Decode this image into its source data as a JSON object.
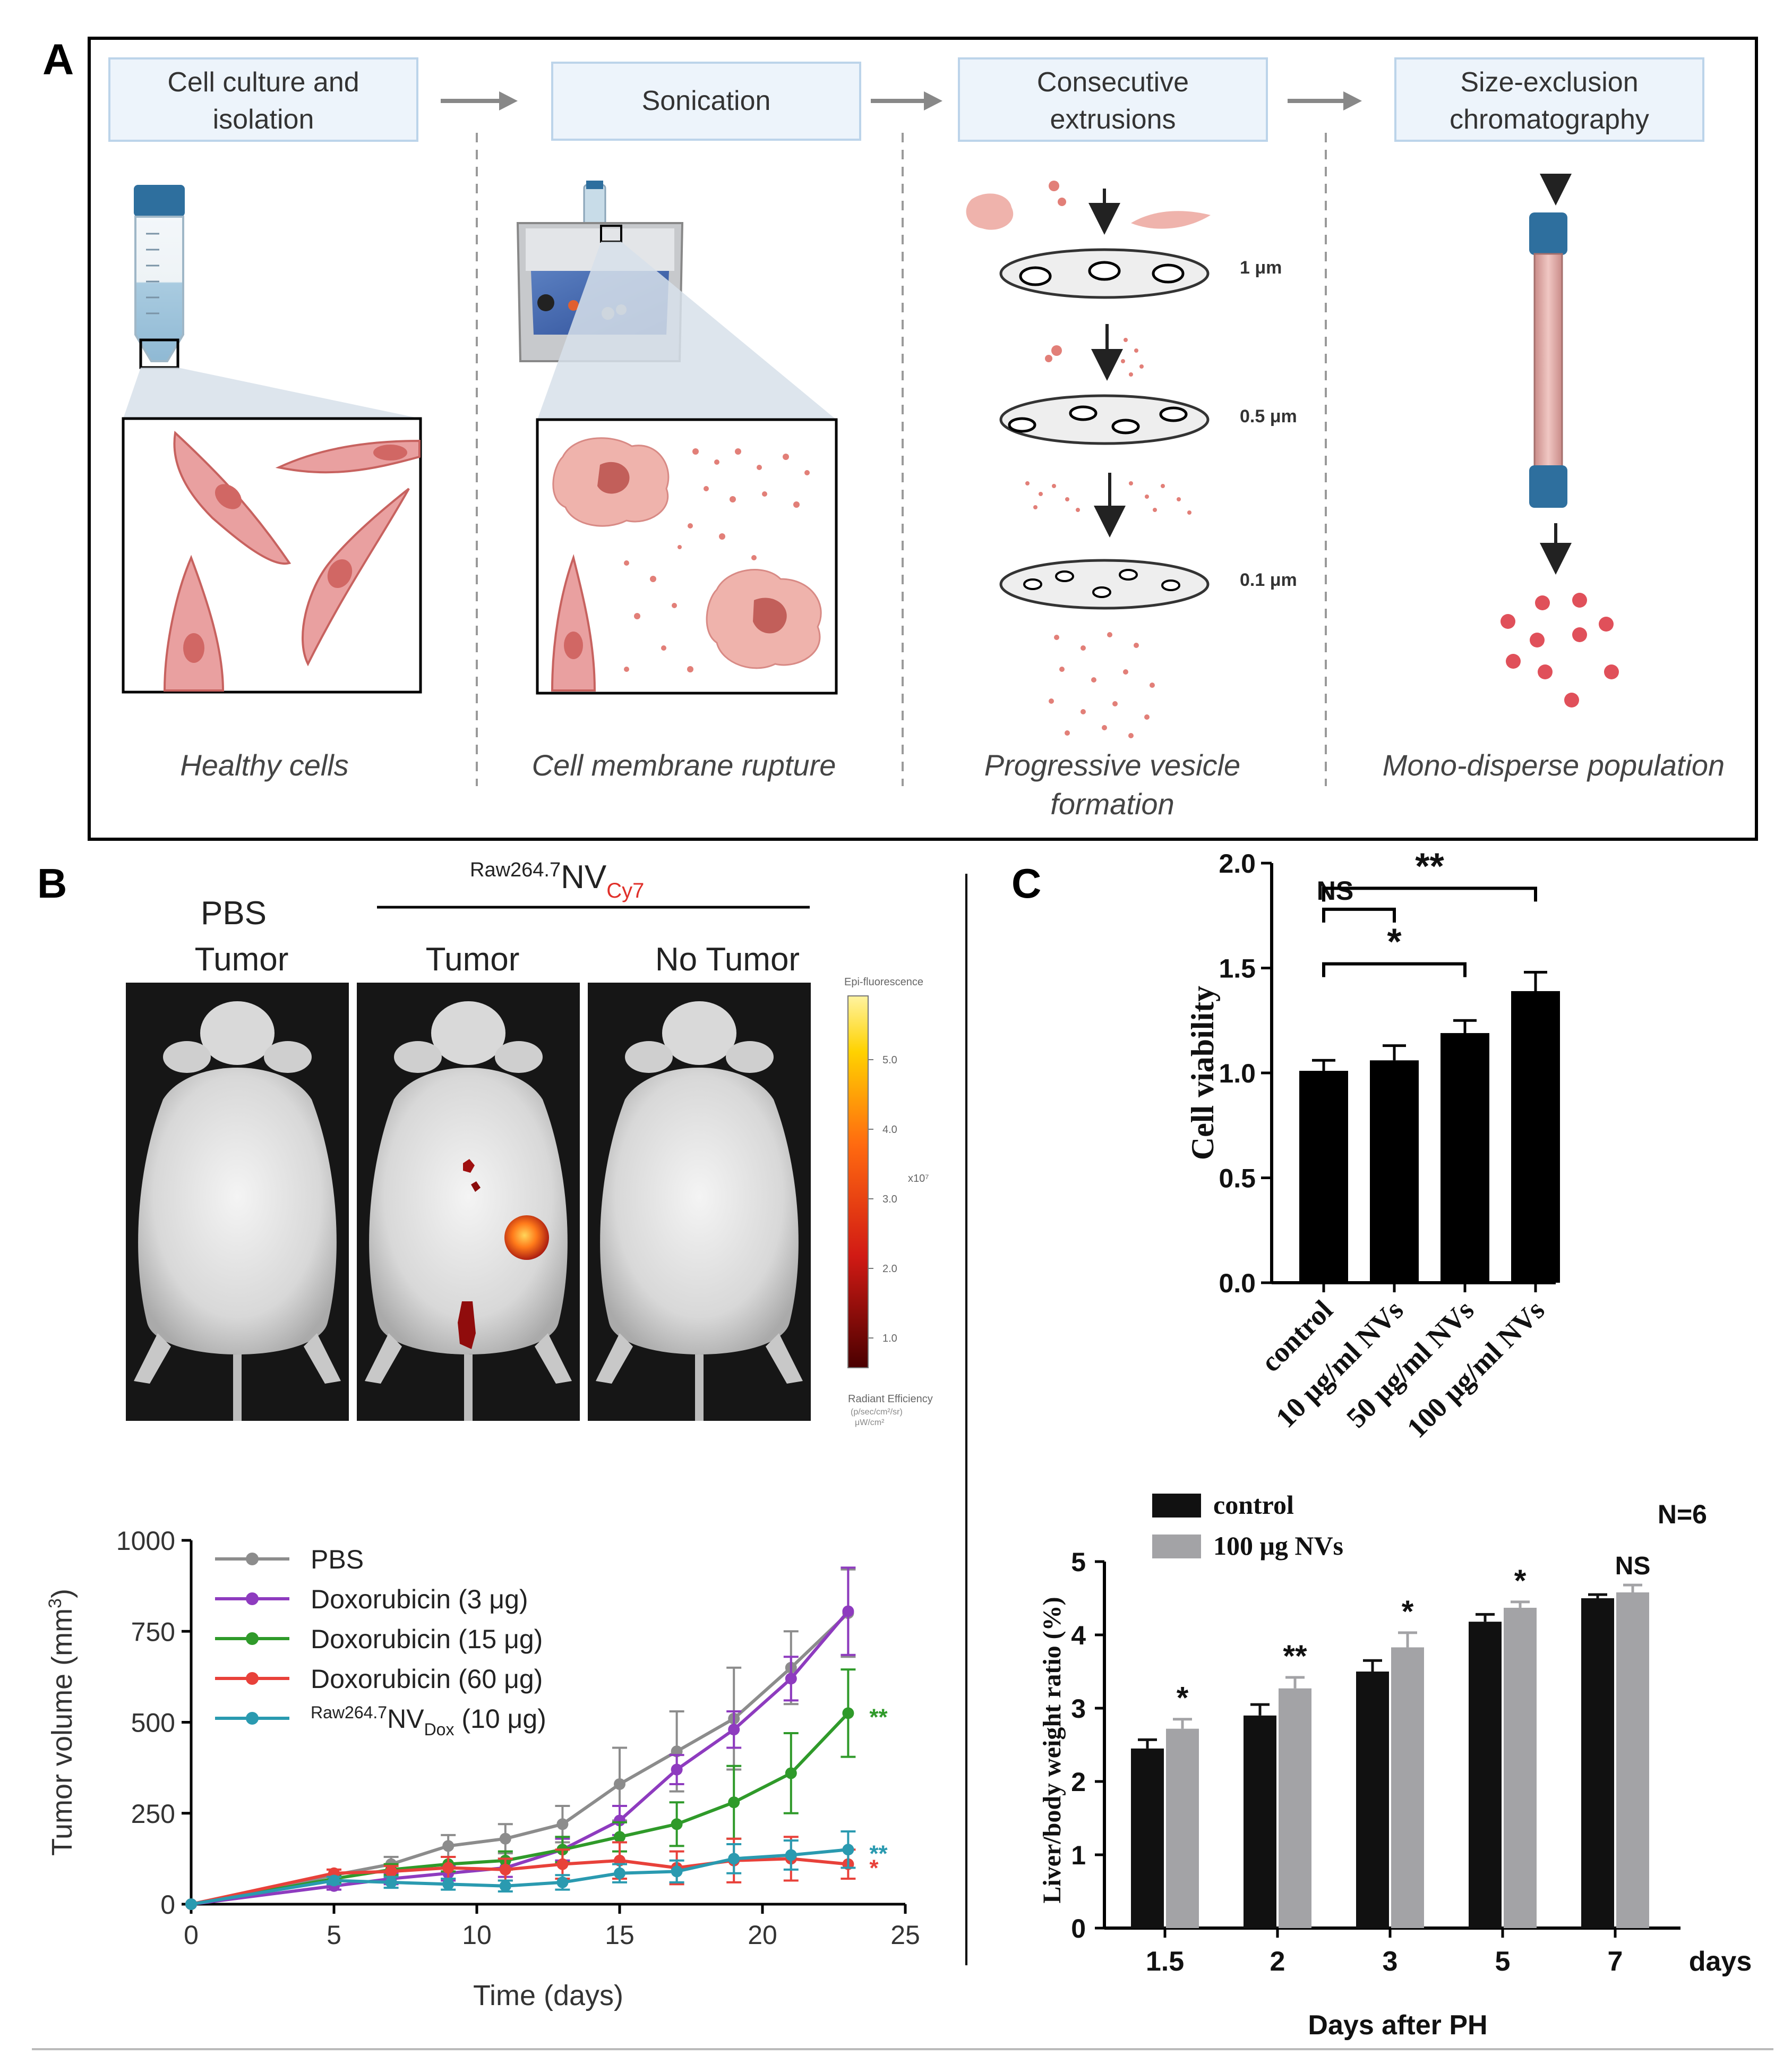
{
  "panel_labels": {
    "a": "A",
    "b": "B",
    "c": "C"
  },
  "panel_a": {
    "steps": [
      {
        "title_l1": "Cell culture and",
        "title_l2": "isolation",
        "caption_l1": "Healthy cells",
        "caption_l2": ""
      },
      {
        "title_l1": "Sonication",
        "title_l2": "",
        "caption_l1": "Cell membrane rupture",
        "caption_l2": ""
      },
      {
        "title_l1": "Consecutive",
        "title_l2": "extrusions",
        "caption_l1": "Progressive vesicle",
        "caption_l2": "formation"
      },
      {
        "title_l1": "Size-exclusion",
        "title_l2": "chromatography",
        "caption_l1": "Mono-disperse population",
        "caption_l2": ""
      }
    ],
    "pore_sizes": [
      "1 μm",
      "0.5 μm",
      "0.1 μm"
    ]
  },
  "panel_b": {
    "imaging": {
      "group_base": "Raw264.7",
      "group_main": "NV",
      "group_sub": "Cy7",
      "pbs_label": "PBS",
      "columns": [
        "Tumor",
        "Tumor",
        "No Tumor"
      ],
      "colorbar_title": "Epi-fluorescence",
      "colorbar_ticks": [
        "5.0",
        "4.0",
        "3.0",
        "2.0",
        "1.0"
      ],
      "colorbar_exp": "x10⁷",
      "colorbar_unit_l1": "Radiant Efficiency",
      "colorbar_unit_l2": "(p/sec/cm²/sr)",
      "colorbar_unit_l3": "μW/cm²"
    },
    "tumor_chart": {
      "type": "line",
      "xlabel": "Time (days)",
      "ylabel": "Tumor volume (mm",
      "ylabel_sup": "3",
      "ylabel_end": ")",
      "xlim": [
        0,
        25
      ],
      "ylim": [
        0,
        1000
      ],
      "xticks": [
        0,
        5,
        10,
        15,
        20,
        25
      ],
      "yticks": [
        0,
        250,
        500,
        750,
        1000
      ],
      "series": [
        {
          "name": "PBS",
          "legend_pre": "",
          "legend_main": "PBS",
          "legend_sub": "",
          "legend_post": "",
          "color": "#8c8c8c",
          "x": [
            0,
            5,
            7,
            9,
            11,
            13,
            15,
            17,
            19,
            21,
            23
          ],
          "y": [
            0,
            80,
            110,
            160,
            180,
            220,
            330,
            420,
            510,
            650,
            800
          ],
          "err": [
            0,
            15,
            20,
            30,
            40,
            50,
            100,
            110,
            140,
            100,
            120
          ],
          "sig": ""
        },
        {
          "name": "Doxorubicin (3 μg)",
          "legend_pre": "",
          "legend_main": "Doxorubicin (3 μg)",
          "legend_sub": "",
          "legend_post": "",
          "color": "#8e3bbf",
          "x": [
            0,
            5,
            7,
            9,
            11,
            13,
            15,
            17,
            19,
            21,
            23
          ],
          "y": [
            0,
            50,
            70,
            85,
            100,
            150,
            230,
            370,
            480,
            620,
            805
          ],
          "err": [
            0,
            10,
            15,
            20,
            25,
            30,
            40,
            40,
            50,
            60,
            120
          ],
          "sig": ""
        },
        {
          "name": "Doxorubicin (15 μg)",
          "legend_pre": "",
          "legend_main": "Doxorubicin (15 μg)",
          "legend_sub": "",
          "legend_post": "",
          "color": "#2f9a2a",
          "x": [
            0,
            5,
            7,
            9,
            11,
            13,
            15,
            17,
            19,
            21,
            23
          ],
          "y": [
            0,
            70,
            95,
            110,
            120,
            150,
            185,
            220,
            280,
            360,
            525
          ],
          "err": [
            0,
            10,
            15,
            20,
            25,
            35,
            40,
            60,
            100,
            110,
            120
          ],
          "sig": "**"
        },
        {
          "name": "Doxorubicin (60 μg)",
          "legend_pre": "",
          "legend_main": "Doxorubicin (60 μg)",
          "legend_sub": "",
          "legend_post": "",
          "color": "#e8413a",
          "x": [
            0,
            5,
            7,
            9,
            11,
            13,
            15,
            17,
            19,
            21,
            23
          ],
          "y": [
            0,
            85,
            90,
            100,
            95,
            110,
            120,
            100,
            120,
            125,
            110
          ],
          "err": [
            0,
            10,
            15,
            30,
            30,
            40,
            50,
            45,
            60,
            60,
            40
          ],
          "sig": "*"
        },
        {
          "name": "Raw264.7 NV Dox (10 μg)",
          "legend_pre": "Raw264.7",
          "legend_main": "NV",
          "legend_sub": "Dox",
          "legend_post": " (10 μg)",
          "color": "#2a9ab0",
          "x": [
            0,
            5,
            7,
            9,
            11,
            13,
            15,
            17,
            19,
            21,
            23
          ],
          "y": [
            0,
            65,
            60,
            55,
            50,
            60,
            85,
            90,
            125,
            135,
            150
          ],
          "err": [
            0,
            10,
            15,
            15,
            15,
            20,
            25,
            30,
            40,
            40,
            50
          ],
          "sig": "**"
        }
      ]
    }
  },
  "panel_c": {
    "viability_chart": {
      "type": "bar",
      "ylabel": "Cell viability",
      "ylim": [
        0,
        2.0
      ],
      "yticks": [
        "0.0",
        "0.5",
        "1.0",
        "1.5",
        "2.0"
      ],
      "categories": [
        "control",
        "10 μg/ml NVs",
        "50 μg/ml NVs",
        "100 μg/ml NVs"
      ],
      "values": [
        1.01,
        1.06,
        1.19,
        1.39
      ],
      "errors": [
        0.05,
        0.07,
        0.06,
        0.09
      ],
      "brackets": [
        {
          "from": 0,
          "to": 1,
          "label": "NS"
        },
        {
          "from": 0,
          "to": 2,
          "label": "*"
        },
        {
          "from": 0,
          "to": 3,
          "label": "**"
        }
      ]
    },
    "liver_chart": {
      "type": "bar",
      "title_note": "N=6",
      "ylabel": "Liver/body weight ratio (%)",
      "xlabel": "Days after PH",
      "x_unit": "days",
      "ylim": [
        0,
        5
      ],
      "yticks": [
        "0",
        "1",
        "2",
        "3",
        "4",
        "5"
      ],
      "categories": [
        "1.5",
        "2",
        "3",
        "5",
        "7"
      ],
      "series": [
        {
          "name": "control",
          "color": "#111111",
          "values": [
            2.45,
            2.9,
            3.5,
            4.18,
            4.5
          ],
          "errors": [
            0.12,
            0.15,
            0.15,
            0.1,
            0.05
          ]
        },
        {
          "name": "100 μg NVs",
          "color": "#a3a3a6",
          "values": [
            2.72,
            3.27,
            3.83,
            4.37,
            4.58
          ],
          "errors": [
            0.13,
            0.15,
            0.2,
            0.08,
            0.1
          ]
        }
      ],
      "significance": [
        "*",
        "**",
        "*",
        "*",
        "NS"
      ]
    }
  }
}
